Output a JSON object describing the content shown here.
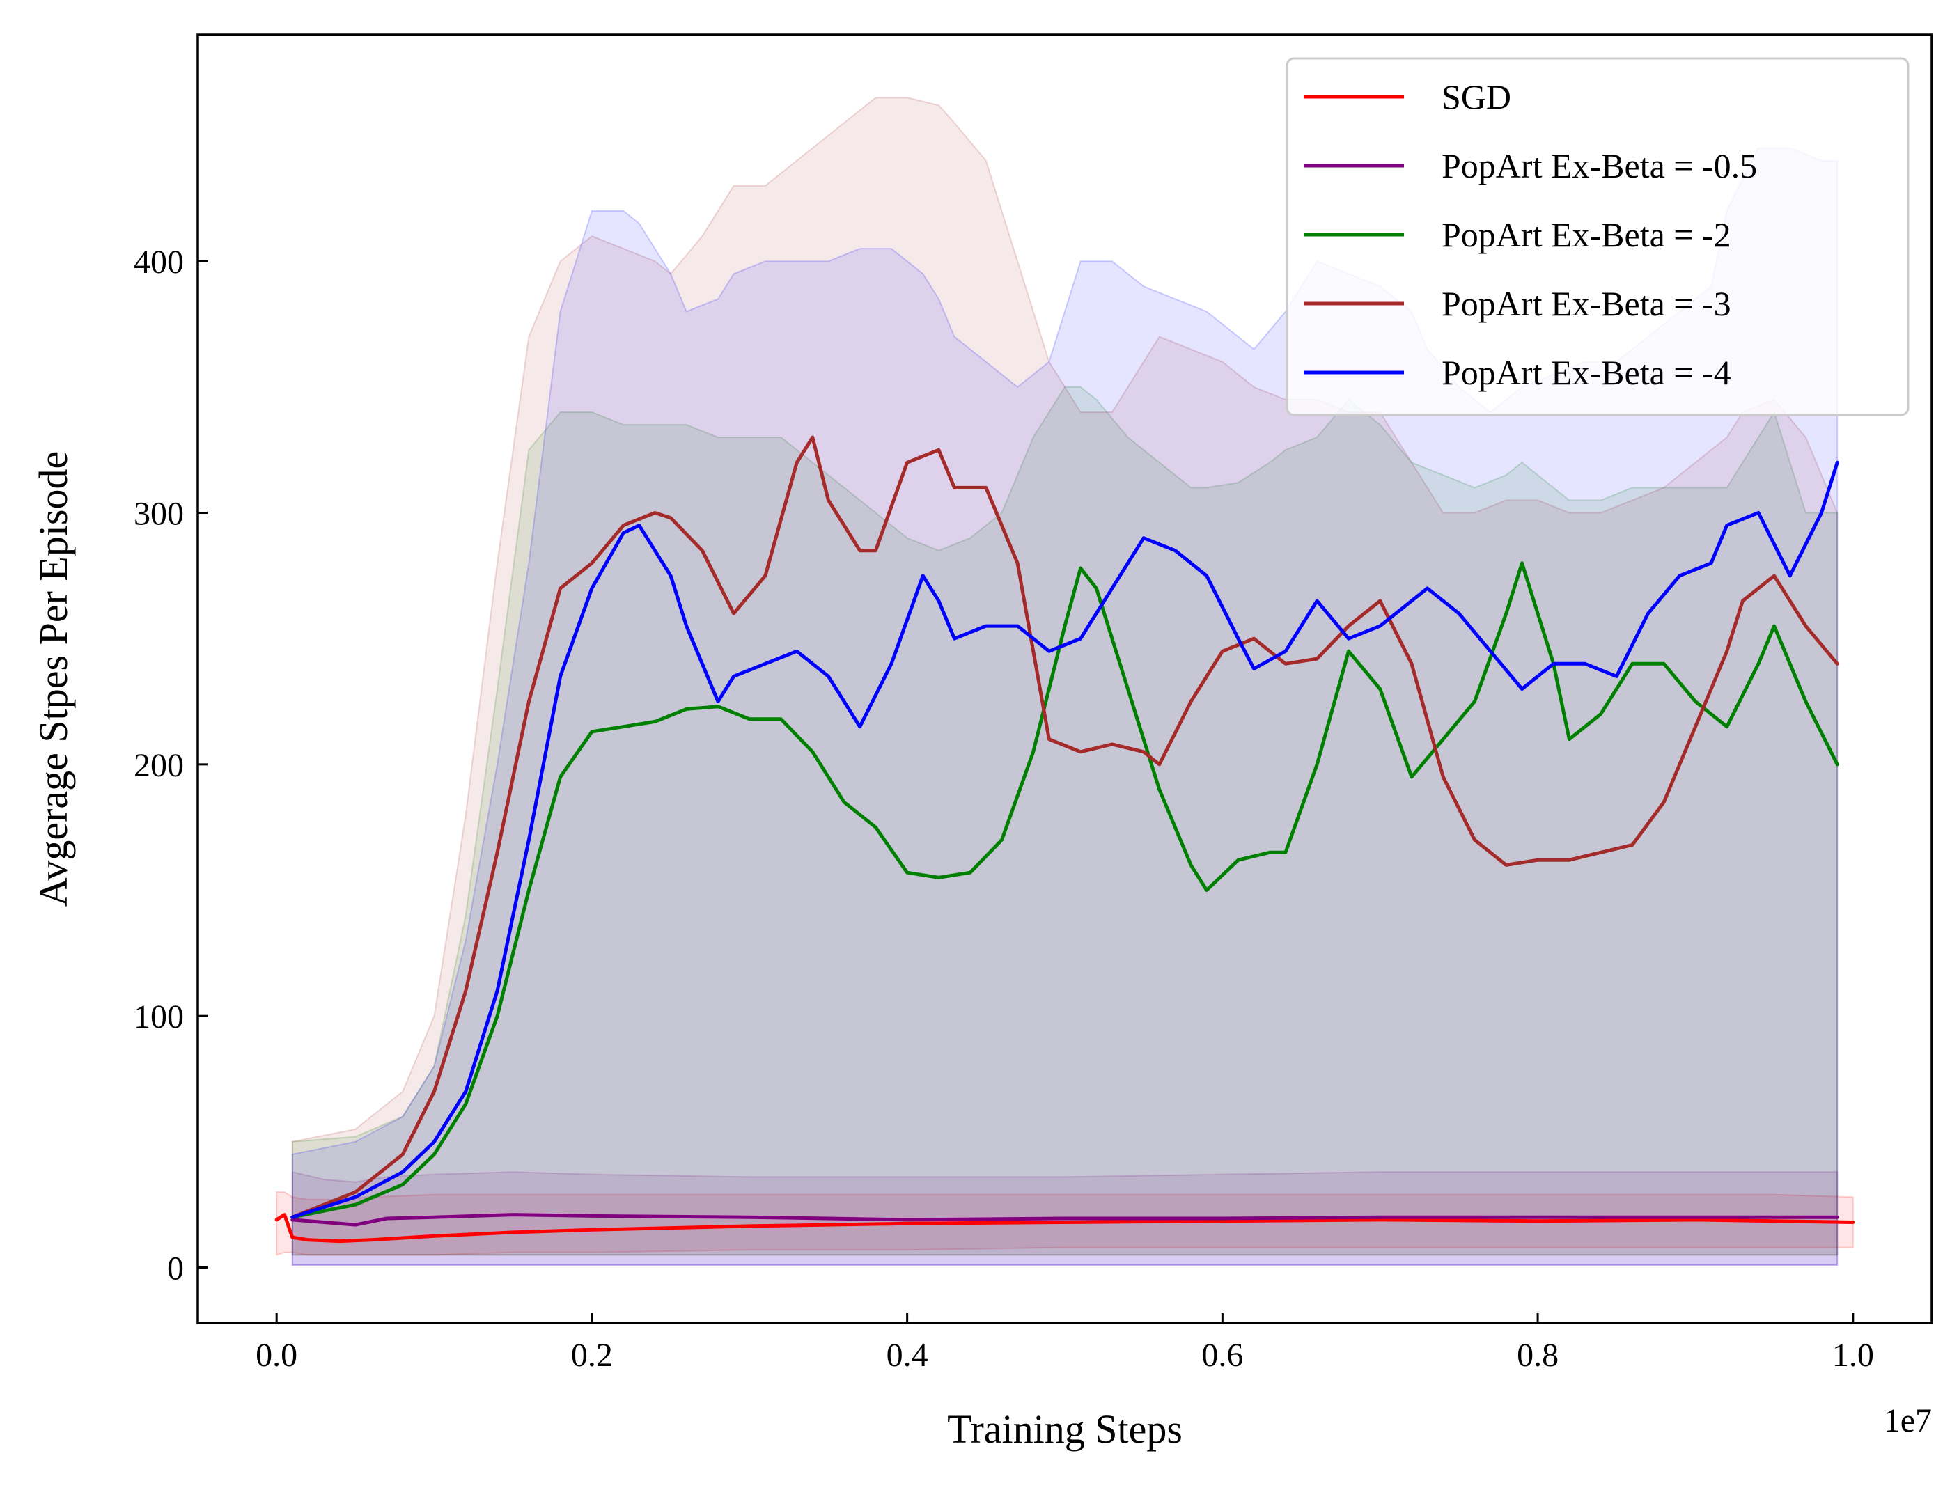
{
  "chart_data": {
    "type": "line",
    "title": "",
    "xlabel": "Training Steps",
    "ylabel": "Avgerage Stpes Per Episode",
    "x_offset_text": "1e7",
    "xlim": [
      -0.05,
      1.05
    ],
    "ylim": [
      -22,
      490
    ],
    "x_ticks": [
      0.0,
      0.2,
      0.4,
      0.6,
      0.8,
      1.0
    ],
    "x_tick_labels": [
      "0.0",
      "0.2",
      "0.4",
      "0.6",
      "0.8",
      "1.0"
    ],
    "y_ticks": [
      0,
      100,
      200,
      300,
      400
    ],
    "y_tick_labels": [
      "0",
      "100",
      "200",
      "300",
      "400"
    ],
    "grid": false,
    "legend_position": "top-right",
    "series": [
      {
        "name": "SGD",
        "color": "#ff0000",
        "x": [
          0.0,
          0.005,
          0.01,
          0.02,
          0.04,
          0.06,
          0.1,
          0.15,
          0.2,
          0.3,
          0.4,
          0.5,
          0.6,
          0.7,
          0.8,
          0.9,
          0.95,
          1.0
        ],
        "y": [
          19,
          21,
          12,
          11,
          10.5,
          11,
          12.5,
          14,
          15,
          16.5,
          17.5,
          18,
          18.5,
          19,
          18.5,
          19,
          18.5,
          18
        ],
        "band_upper": [
          30,
          30,
          28,
          27,
          27,
          28,
          29,
          29,
          29,
          29,
          29,
          29,
          29,
          29,
          29,
          29,
          29,
          28
        ],
        "band_lower": [
          5,
          6,
          6,
          5,
          5,
          5,
          5,
          6,
          6,
          7,
          7,
          8,
          8,
          8,
          8,
          8,
          8,
          8
        ]
      },
      {
        "name": "PopArt Ex-Beta = -0.5",
        "color": "#800080",
        "x": [
          0.01,
          0.03,
          0.05,
          0.07,
          0.1,
          0.15,
          0.2,
          0.3,
          0.4,
          0.5,
          0.6,
          0.7,
          0.8,
          0.9,
          0.99
        ],
        "y": [
          19,
          18,
          17,
          19.5,
          20,
          21,
          20.5,
          20,
          19,
          19.5,
          19.5,
          20,
          20,
          20,
          20
        ],
        "band_upper": [
          38,
          35,
          34,
          36,
          37,
          38,
          37,
          36,
          36,
          36,
          37,
          38,
          38,
          38,
          38
        ],
        "band_lower": [
          1,
          1,
          1,
          1,
          1,
          1,
          1,
          1,
          1,
          1,
          1,
          1,
          1,
          1,
          1
        ]
      },
      {
        "name": "PopArt Ex-Beta = -2",
        "color": "#008000",
        "x": [
          0.01,
          0.05,
          0.08,
          0.1,
          0.12,
          0.14,
          0.16,
          0.18,
          0.2,
          0.22,
          0.24,
          0.26,
          0.28,
          0.3,
          0.32,
          0.34,
          0.36,
          0.38,
          0.4,
          0.42,
          0.44,
          0.46,
          0.48,
          0.5,
          0.51,
          0.52,
          0.54,
          0.56,
          0.58,
          0.59,
          0.61,
          0.63,
          0.64,
          0.66,
          0.68,
          0.7,
          0.72,
          0.74,
          0.76,
          0.78,
          0.79,
          0.81,
          0.82,
          0.84,
          0.86,
          0.88,
          0.9,
          0.92,
          0.94,
          0.95,
          0.97,
          0.99
        ],
        "y": [
          20,
          25,
          33,
          45,
          65,
          100,
          150,
          195,
          213,
          215,
          217,
          222,
          223,
          218,
          218,
          205,
          185,
          175,
          157,
          155,
          157,
          170,
          205,
          255,
          278,
          270,
          230,
          190,
          160,
          150,
          162,
          165,
          165,
          200,
          245,
          230,
          195,
          210,
          225,
          260,
          280,
          240,
          210,
          220,
          240,
          240,
          225,
          215,
          240,
          255,
          225,
          200
        ],
        "band_upper": [
          50,
          52,
          60,
          80,
          140,
          230,
          325,
          340,
          340,
          335,
          335,
          335,
          330,
          330,
          330,
          320,
          310,
          300,
          290,
          285,
          290,
          300,
          330,
          350,
          350,
          345,
          330,
          320,
          310,
          310,
          312,
          320,
          325,
          330,
          345,
          335,
          320,
          315,
          310,
          315,
          320,
          310,
          305,
          305,
          310,
          310,
          310,
          310,
          330,
          340,
          300,
          300
        ],
        "band_lower": [
          5,
          5,
          5,
          5,
          5,
          5,
          5,
          5,
          5,
          5,
          5,
          5,
          5,
          5,
          5,
          5,
          5,
          5,
          5,
          5,
          5,
          5,
          5,
          5,
          5,
          5,
          5,
          5,
          5,
          5,
          5,
          5,
          5,
          5,
          5,
          5,
          5,
          5,
          5,
          5,
          5,
          5,
          5,
          5,
          5,
          5,
          5,
          5,
          5,
          5,
          5,
          5
        ]
      },
      {
        "name": "PopArt Ex-Beta = -3",
        "color": "#a52a2a",
        "x": [
          0.01,
          0.05,
          0.08,
          0.1,
          0.12,
          0.14,
          0.16,
          0.18,
          0.2,
          0.22,
          0.24,
          0.25,
          0.27,
          0.29,
          0.31,
          0.33,
          0.34,
          0.35,
          0.37,
          0.38,
          0.4,
          0.42,
          0.43,
          0.45,
          0.47,
          0.49,
          0.51,
          0.53,
          0.55,
          0.56,
          0.58,
          0.6,
          0.62,
          0.64,
          0.66,
          0.68,
          0.7,
          0.72,
          0.74,
          0.76,
          0.78,
          0.8,
          0.82,
          0.84,
          0.86,
          0.88,
          0.9,
          0.92,
          0.93,
          0.95,
          0.97,
          0.99
        ],
        "y": [
          20,
          30,
          45,
          70,
          110,
          165,
          225,
          270,
          280,
          295,
          300,
          298,
          285,
          260,
          275,
          320,
          330,
          305,
          285,
          285,
          320,
          325,
          310,
          310,
          280,
          210,
          205,
          208,
          205,
          200,
          225,
          245,
          250,
          240,
          242,
          255,
          265,
          240,
          195,
          170,
          160,
          162,
          162,
          165,
          168,
          185,
          215,
          245,
          265,
          275,
          255,
          240
        ],
        "band_upper": [
          50,
          55,
          70,
          100,
          180,
          280,
          370,
          400,
          410,
          405,
          400,
          395,
          410,
          430,
          430,
          440,
          445,
          450,
          460,
          465,
          465,
          462,
          455,
          440,
          400,
          360,
          340,
          340,
          360,
          370,
          365,
          360,
          350,
          345,
          345,
          340,
          340,
          320,
          300,
          300,
          305,
          305,
          300,
          300,
          305,
          310,
          320,
          330,
          340,
          345,
          330,
          300
        ],
        "band_lower": [
          5,
          5,
          5,
          5,
          5,
          5,
          5,
          5,
          5,
          5,
          5,
          5,
          5,
          5,
          5,
          5,
          5,
          5,
          5,
          5,
          5,
          5,
          5,
          5,
          5,
          5,
          5,
          5,
          5,
          5,
          5,
          5,
          5,
          5,
          5,
          5,
          5,
          5,
          5,
          5,
          5,
          5,
          5,
          5,
          5,
          5,
          5,
          5,
          5,
          5,
          5,
          5
        ]
      },
      {
        "name": "PopArt Ex-Beta = -4",
        "color": "#0000ff",
        "x": [
          0.01,
          0.05,
          0.08,
          0.1,
          0.12,
          0.14,
          0.16,
          0.18,
          0.2,
          0.22,
          0.23,
          0.25,
          0.26,
          0.28,
          0.29,
          0.31,
          0.33,
          0.35,
          0.37,
          0.39,
          0.41,
          0.42,
          0.43,
          0.45,
          0.47,
          0.49,
          0.51,
          0.53,
          0.55,
          0.57,
          0.59,
          0.61,
          0.62,
          0.64,
          0.66,
          0.68,
          0.7,
          0.72,
          0.73,
          0.75,
          0.77,
          0.79,
          0.81,
          0.83,
          0.85,
          0.87,
          0.89,
          0.91,
          0.92,
          0.94,
          0.96,
          0.98,
          0.99
        ],
        "y": [
          20,
          28,
          38,
          50,
          70,
          110,
          170,
          235,
          270,
          292,
          295,
          275,
          255,
          225,
          235,
          240,
          245,
          235,
          215,
          240,
          275,
          265,
          250,
          255,
          255,
          245,
          250,
          270,
          290,
          285,
          275,
          250,
          238,
          245,
          265,
          250,
          255,
          265,
          270,
          260,
          245,
          230,
          240,
          240,
          235,
          260,
          275,
          280,
          295,
          300,
          275,
          300,
          320
        ],
        "band_upper": [
          45,
          50,
          60,
          80,
          130,
          200,
          280,
          380,
          420,
          420,
          415,
          395,
          380,
          385,
          395,
          400,
          400,
          400,
          405,
          405,
          395,
          385,
          370,
          360,
          350,
          360,
          400,
          400,
          390,
          385,
          380,
          370,
          365,
          380,
          400,
          395,
          390,
          380,
          365,
          350,
          340,
          350,
          355,
          360,
          360,
          370,
          380,
          390,
          420,
          445,
          445,
          440,
          440
        ],
        "band_lower": [
          1,
          1,
          1,
          1,
          1,
          1,
          1,
          1,
          1,
          1,
          1,
          1,
          1,
          1,
          1,
          1,
          1,
          1,
          1,
          1,
          1,
          1,
          1,
          1,
          1,
          1,
          1,
          1,
          1,
          1,
          1,
          1,
          1,
          1,
          1,
          1,
          1,
          1,
          1,
          1,
          1,
          1,
          1,
          1,
          1,
          1,
          1,
          1,
          1,
          1,
          1,
          1,
          1
        ]
      }
    ]
  }
}
